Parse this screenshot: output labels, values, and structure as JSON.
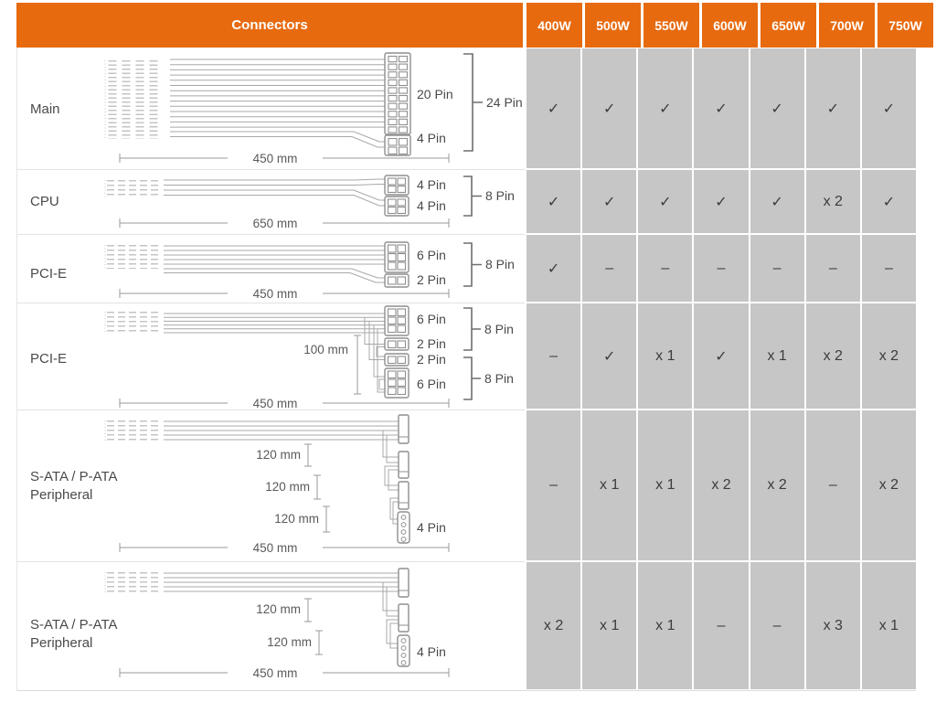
{
  "header": {
    "connectors": "Connectors",
    "watts": [
      "400W",
      "500W",
      "550W",
      "600W",
      "650W",
      "700W",
      "750W"
    ]
  },
  "colors": {
    "header_bg": "#E76A0F",
    "header_text": "#FFFFFF",
    "cell_bg": "#C6C6C6",
    "value_text": "#3C3C3C"
  },
  "rows": [
    {
      "name": "Main",
      "pin1": "20 Pin",
      "pin2": "4 Pin",
      "bracket1": "24 Pin",
      "length": "450 mm",
      "values": [
        "✓",
        "✓",
        "✓",
        "✓",
        "✓",
        "✓",
        "✓"
      ]
    },
    {
      "name": "CPU",
      "pin1": "4 Pin",
      "pin2": "4 Pin",
      "bracket1": "8 Pin",
      "length": "650 mm",
      "values": [
        "✓",
        "✓",
        "✓",
        "✓",
        "✓",
        "x 2",
        "✓"
      ]
    },
    {
      "name": "PCI-E",
      "pin1": "6 Pin",
      "pin2": "2 Pin",
      "bracket1": "8 Pin",
      "length": "450 mm",
      "values": [
        "✓",
        "–",
        "–",
        "–",
        "–",
        "–",
        "–"
      ]
    },
    {
      "name": "PCI-E",
      "pin1": "6 Pin",
      "pin2": "2 Pin",
      "pin3": "2 Pin",
      "pin4": "6 Pin",
      "bracket1": "8 Pin",
      "bracket2": "8 Pin",
      "seg1": "100 mm",
      "length": "450 mm",
      "values": [
        "–",
        "✓",
        "x 1",
        "✓",
        "x 1",
        "x 2",
        "x 2"
      ]
    },
    {
      "name": "S-ATA / P-ATA",
      "name2": "Peripheral",
      "seg1": "120 mm",
      "seg2": "120 mm",
      "seg3": "120 mm",
      "pin1": "4 Pin",
      "length": "450 mm",
      "values": [
        "–",
        "x 1",
        "x 1",
        "x 2",
        "x 2",
        "–",
        "x 2"
      ]
    },
    {
      "name": "S-ATA / P-ATA",
      "name2": "Peripheral",
      "seg1": "120 mm",
      "seg2": "120 mm",
      "pin1": "4 Pin",
      "length": "450 mm",
      "values": [
        "x 2",
        "x 1",
        "x 1",
        "–",
        "–",
        "x 3",
        "x 1"
      ]
    }
  ]
}
